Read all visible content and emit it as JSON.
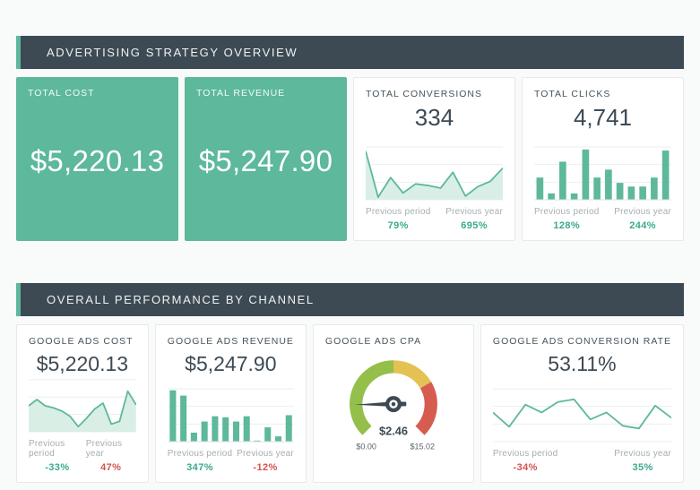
{
  "theme": {
    "background": "#f9fafa",
    "card_background": "#ffffff",
    "card_border": "#e7e9eb",
    "dark_slate": "#3d4a54",
    "brand_green": "#5db89c",
    "area_fill_green": "#d9efe6",
    "gridline": "#eceeef",
    "muted_label": "#a7aeb3",
    "delta_positive": "#3aa98c",
    "delta_negative": "#d4544e",
    "gauge_green": "#94bf4b",
    "gauge_yellow": "#e4c153",
    "gauge_red": "#d65c50"
  },
  "sections": [
    {
      "title": "ADVERTISING STRATEGY OVERVIEW",
      "cards": [
        {
          "label": "TOTAL COST",
          "value": "$5,220.13"
        },
        {
          "label": "TOTAL REVENUE",
          "value": "$5,247.90"
        },
        {
          "label": "TOTAL CONVERSIONS",
          "value": "334",
          "prev_period": {
            "label": "Previous period",
            "value": "79%",
            "color": "#3aa98c"
          },
          "prev_year": {
            "label": "Previous year",
            "value": "695%",
            "color": "#3aa98c"
          }
        },
        {
          "label": "TOTAL CLICKS",
          "value": "4,741",
          "prev_period": {
            "label": "Previous period",
            "value": "128%",
            "color": "#3aa98c"
          },
          "prev_year": {
            "label": "Previous year",
            "value": "244%",
            "color": "#3aa98c"
          }
        }
      ]
    },
    {
      "title": "OVERALL PERFORMANCE BY CHANNEL",
      "cards": [
        {
          "label": "GOOGLE ADS COST",
          "value": "$5,220.13",
          "prev_period": {
            "label": "Previous period",
            "value": "-33%",
            "color": "#3aa98c"
          },
          "prev_year": {
            "label": "Previous year",
            "value": "47%",
            "color": "#d4544e"
          }
        },
        {
          "label": "GOOGLE ADS REVENUE",
          "value": "$5,247.90",
          "prev_period": {
            "label": "Previous period",
            "value": "347%",
            "color": "#3aa98c"
          },
          "prev_year": {
            "label": "Previous year",
            "value": "-12%",
            "color": "#d4544e"
          }
        },
        {
          "label": "GOOGLE ADS CPA"
        },
        {
          "label": "GOOGLE ADS CONVERSION RATE",
          "value": "53.11%",
          "prev_period": {
            "label": "Previous period",
            "value": "-34%",
            "color": "#d4544e"
          },
          "prev_year": {
            "label": "Previous year",
            "value": "35%",
            "color": "#3aa98c"
          }
        }
      ]
    }
  ],
  "chart_data": [
    {
      "id": "total-conversions-trend",
      "type": "area",
      "title": "TOTAL CONVERSIONS",
      "value_label": "334",
      "x_note": "unlabeled equal time periods",
      "values_pct_of_max": [
        92,
        5,
        42,
        13,
        30,
        27,
        22,
        52,
        7,
        25,
        35,
        60
      ],
      "color": "#5db89c",
      "fill": "#d9efe6",
      "grid": true
    },
    {
      "id": "total-clicks-trend",
      "type": "bar",
      "title": "TOTAL CLICKS",
      "value_label": "4,741",
      "x_note": "unlabeled equal time periods",
      "values_pct_of_max": [
        42,
        12,
        72,
        12,
        95,
        42,
        57,
        32,
        25,
        25,
        42,
        93
      ],
      "color": "#5db89c",
      "grid": true
    },
    {
      "id": "google-ads-cost-trend",
      "type": "area",
      "title": "GOOGLE ADS COST",
      "value_label": "$5,220.13",
      "x_note": "unlabeled equal time periods",
      "values_pct_of_max": [
        50,
        62,
        50,
        46,
        40,
        30,
        10,
        26,
        44,
        55,
        15,
        20,
        78,
        52
      ],
      "color": "#5db89c",
      "fill": "#d9efe6",
      "grid": true
    },
    {
      "id": "google-ads-revenue-trend",
      "type": "bar",
      "title": "GOOGLE ADS REVENUE",
      "value_label": "$5,247.90",
      "x_note": "unlabeled equal time periods",
      "values_pct_of_max": [
        97,
        87,
        17,
        38,
        48,
        46,
        38,
        48,
        2,
        27,
        10,
        50
      ],
      "color": "#5db89c",
      "grid": true
    },
    {
      "id": "google-ads-cpa-gauge",
      "type": "gauge",
      "title": "GOOGLE ADS CPA",
      "value": 2.46,
      "min": 0,
      "max": 15.02,
      "value_label": "$2.46",
      "min_label": "$0.00",
      "max_label": "$15.02",
      "segments": [
        {
          "color": "#94bf4b",
          "fraction": 0.5
        },
        {
          "color": "#e4c153",
          "fraction": 0.22
        },
        {
          "color": "#d65c50",
          "fraction": 0.28
        }
      ],
      "needle_color": "#3d4a54"
    },
    {
      "id": "google-ads-conversion-rate-trend",
      "type": "line",
      "title": "GOOGLE ADS CONVERSION RATE",
      "value_label": "53.11%",
      "x_note": "unlabeled equal time periods",
      "values_pct_of_max": [
        55,
        28,
        70,
        55,
        75,
        80,
        42,
        55,
        30,
        25,
        68,
        45
      ],
      "color": "#5db89c",
      "grid": true
    }
  ]
}
